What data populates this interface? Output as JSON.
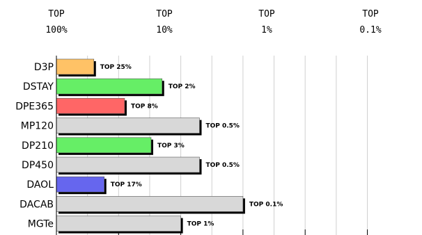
{
  "chart_data": {
    "type": "bar",
    "orientation": "horizontal",
    "title": "",
    "xlabel": "",
    "ylabel": "",
    "x_scale": "log",
    "grid": true,
    "legend": "none",
    "top_axis": [
      {
        "line1": "TOP",
        "line2": "100%",
        "value": 100
      },
      {
        "line1": "TOP",
        "line2": "10%",
        "value": 10
      },
      {
        "line1": "TOP",
        "line2": "1%",
        "value": 1
      },
      {
        "line1": "TOP",
        "line2": "0.1%",
        "value": 0.1
      }
    ],
    "categories": [
      "D3P",
      "DSTAY",
      "DPE365",
      "MP120",
      "DP210",
      "DP450",
      "DAOL",
      "DACAB",
      "MGTe"
    ],
    "values": [
      25,
      2,
      8,
      0.5,
      3,
      0.5,
      17,
      0.1,
      1
    ],
    "data_labels": [
      "TOP 25%",
      "TOP 2%",
      "TOP 8%",
      "TOP 0.5%",
      "TOP 3%",
      "TOP 0.5%",
      "TOP 17%",
      "TOP 0.1%",
      "TOP 1%"
    ],
    "colors": [
      "#ffc266",
      "#66ee66",
      "#ff6666",
      "#d8d8d8",
      "#66ee66",
      "#d8d8d8",
      "#6666ee",
      "#d8d8d8",
      "#d8d8d8"
    ]
  }
}
